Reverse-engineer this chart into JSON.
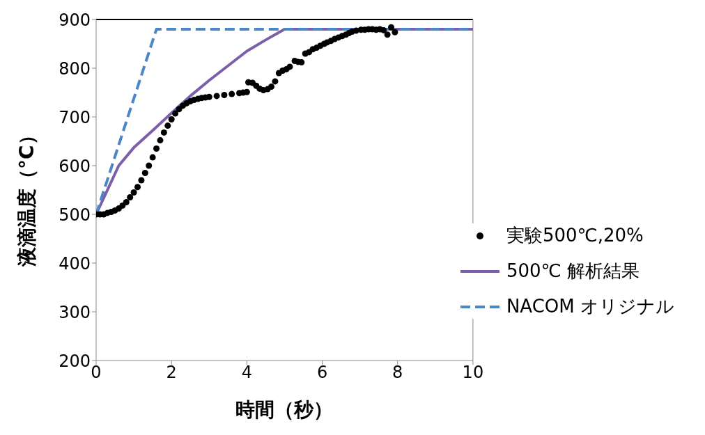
{
  "chart_data": {
    "type": "line",
    "xlabel": "時間（秒）",
    "ylabel": "液滴温度（°C）",
    "xlim": [
      0,
      10
    ],
    "xticks": [
      0,
      2,
      4,
      6,
      8,
      10
    ],
    "ylim": [
      200,
      900
    ],
    "yticks": [
      200,
      300,
      400,
      500,
      600,
      700,
      800,
      900
    ],
    "grid": false,
    "legend": "bottom right",
    "series": [
      {
        "name": "実験500℃,20%",
        "type": "scatter",
        "marker": "circle",
        "color": "#000000",
        "x": [
          0,
          0.1,
          0.2,
          0.3,
          0.4,
          0.5,
          0.6,
          0.7,
          0.8,
          0.9,
          1.0,
          1.1,
          1.2,
          1.3,
          1.4,
          1.5,
          1.6,
          1.7,
          1.8,
          1.9,
          2.0,
          2.1,
          2.2,
          2.3,
          2.4,
          2.5,
          2.6,
          2.7,
          2.8,
          2.9,
          3.0,
          3.2,
          3.4,
          3.6,
          3.8,
          3.9,
          4.0,
          4.04,
          4.15,
          4.25,
          4.34,
          4.44,
          4.55,
          4.65,
          4.75,
          4.85,
          4.95,
          5.05,
          5.14,
          5.27,
          5.36,
          5.45,
          5.55,
          5.65,
          5.75,
          5.85,
          5.95,
          6.05,
          6.13,
          6.23,
          6.33,
          6.43,
          6.53,
          6.63,
          6.71,
          6.79,
          6.9,
          7.03,
          7.13,
          7.23,
          7.33,
          7.43,
          7.53,
          7.63,
          7.73,
          7.83,
          7.93
        ],
        "values": [
          500,
          500,
          500,
          503,
          505,
          508,
          512,
          518,
          525,
          535,
          545,
          556,
          570,
          585,
          600,
          617,
          635,
          652,
          668,
          682,
          695,
          707,
          716,
          723,
          728,
          732,
          735,
          737,
          739,
          740,
          741,
          743,
          745,
          747,
          749,
          750,
          751,
          771,
          770,
          764,
          758,
          755,
          757,
          762,
          773,
          790,
          795,
          798,
          803,
          815,
          813,
          812,
          830,
          833,
          839,
          842,
          846,
          850,
          853,
          856,
          860,
          863,
          866,
          869,
          872,
          875,
          877,
          879,
          879,
          880,
          880,
          879,
          880,
          878,
          869,
          884,
          874
        ]
      },
      {
        "name": "500℃ 解析結果",
        "marker": "none",
        "line_style": "solid",
        "color": "#7b5fa8",
        "x": [
          0,
          0.3,
          0.6,
          1,
          1.5,
          2,
          2.5,
          3,
          3.5,
          4,
          4.5,
          5,
          10
        ],
        "values": [
          500,
          550,
          600,
          637,
          672,
          708,
          743,
          775,
          805,
          835,
          858,
          880,
          880
        ]
      },
      {
        "name": "NACOM オリジナル",
        "marker": "none",
        "line_style": "dashed",
        "color": "#4a86c8",
        "x": [
          0,
          1.6,
          10
        ],
        "values": [
          500,
          880,
          880
        ]
      }
    ]
  }
}
